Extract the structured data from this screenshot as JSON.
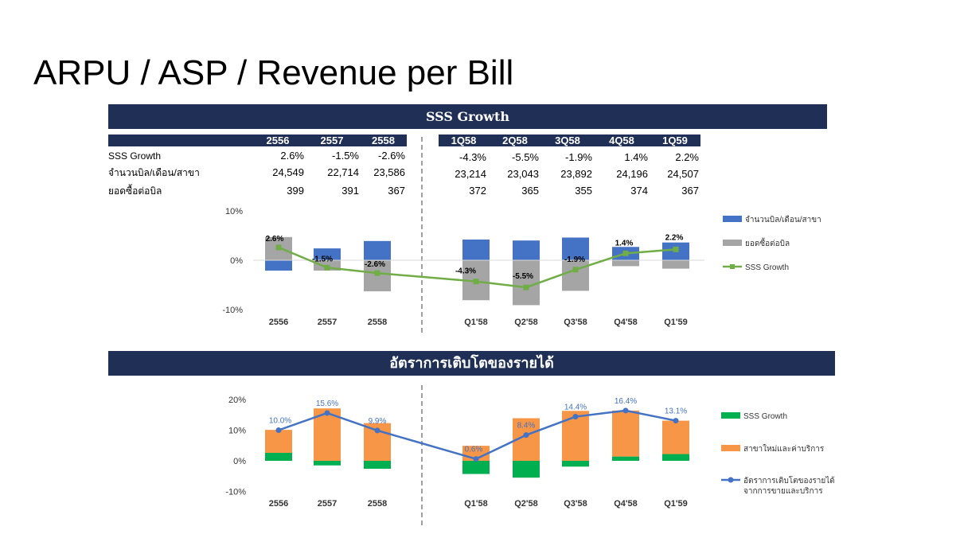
{
  "page": {
    "title": "ARPU / ASP / Revenue per Bill"
  },
  "sss_section": {
    "banner": "SSS Growth",
    "table": {
      "year_columns": [
        "2556",
        "2557",
        "2558"
      ],
      "quarter_columns": [
        "1Q58",
        "2Q58",
        "3Q58",
        "4Q58",
        "1Q59"
      ],
      "rows": [
        {
          "label": "SSS Growth",
          "years": [
            "2.6%",
            "-1.5%",
            "-2.6%"
          ],
          "quarters": [
            "-4.3%",
            "-5.5%",
            "-1.9%",
            "1.4%",
            "2.2%"
          ]
        },
        {
          "label": "จำนวนบิล/เดือน/สาขา",
          "years": [
            "24,549",
            "22,714",
            "23,586"
          ],
          "quarters": [
            "23,214",
            "23,043",
            "23,892",
            "24,196",
            "24,507"
          ]
        },
        {
          "label": "ยอดซื้อต่อบิล",
          "years": [
            "399",
            "391",
            "367"
          ],
          "quarters": [
            "372",
            "365",
            "355",
            "374",
            "367"
          ]
        }
      ]
    }
  },
  "growth_section": {
    "banner": "อัตราการเติบโตของรายได้"
  },
  "chart_data": [
    {
      "type": "bar",
      "subtype": "stacked bar with line overlay",
      "categories": [
        "2556",
        "2557",
        "2558",
        "Q1'58",
        "Q2'58",
        "Q3'58",
        "Q4'58",
        "Q1'59"
      ],
      "ylim": [
        -10,
        10
      ],
      "yticks": [
        "10%",
        "0%",
        "-10%"
      ],
      "grid": false,
      "legend_position": "right",
      "series": [
        {
          "name": "จำนวนบิล/เดือน/สาขา",
          "kind": "bar",
          "color": "#4472c4",
          "values": [
            -2.1,
            2.4,
            3.9,
            4.2,
            4.0,
            4.6,
            2.7,
            3.6
          ]
        },
        {
          "name": "ยอดซื้อต่อบิล",
          "kind": "bar",
          "color": "#a5a5a5",
          "values": [
            4.7,
            -2.1,
            -6.3,
            -8.1,
            -9.1,
            -6.2,
            -1.2,
            -1.7
          ]
        },
        {
          "name": "SSS Growth",
          "kind": "line",
          "color": "#70ad47",
          "values": [
            2.6,
            -1.5,
            -2.6,
            -4.3,
            -5.5,
            -1.9,
            1.4,
            2.2
          ],
          "labels": [
            "2.6%",
            "-1.5%",
            "-2.6%",
            "-4.3%",
            "-5.5%",
            "-1.9%",
            "1.4%",
            "2.2%"
          ]
        }
      ]
    },
    {
      "type": "bar",
      "subtype": "stacked bar with line overlay",
      "categories": [
        "2556",
        "2557",
        "2558",
        "Q1'58",
        "Q2'58",
        "Q3'58",
        "Q4'58",
        "Q1'59"
      ],
      "ylim": [
        -10,
        20
      ],
      "yticks": [
        "20%",
        "10%",
        "0%",
        "-10%"
      ],
      "grid": false,
      "legend_position": "right",
      "series": [
        {
          "name": "SSS Growth",
          "kind": "bar",
          "color": "#00b050",
          "values": [
            2.6,
            -1.5,
            -2.6,
            -4.3,
            -5.5,
            -1.9,
            1.4,
            2.2
          ]
        },
        {
          "name": "สาขาใหม่และค่าบริการ",
          "kind": "bar",
          "color": "#f79646",
          "values": [
            7.5,
            17.1,
            12.3,
            4.9,
            13.9,
            16.3,
            15.0,
            10.9
          ]
        },
        {
          "name": "อัตราการเติบโตของรายได้จากการขายและบริการ",
          "legend_lines": [
            "อัตราการเติบโตของรายได้",
            "จากการขายและบริการ"
          ],
          "kind": "line",
          "color": "#4472c4",
          "values": [
            10.0,
            15.6,
            9.9,
            0.6,
            8.4,
            14.4,
            16.4,
            13.1
          ],
          "labels": [
            "10.0%",
            "15.6%",
            "9.9%",
            "0.6%",
            "8.4%",
            "14.4%",
            "16.4%",
            "13.1%"
          ]
        }
      ]
    }
  ]
}
